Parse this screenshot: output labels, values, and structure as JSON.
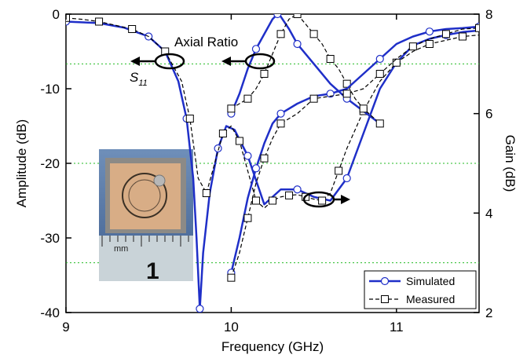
{
  "chart_data": {
    "type": "line",
    "xlabel": "Frequency (GHz)",
    "ylabel_left": "Amplitude (dB)",
    "ylabel_right": "Gain (dB)",
    "xlim": [
      9,
      11.5
    ],
    "ylim_left": [
      -40,
      0
    ],
    "ylim_right": [
      2,
      8
    ],
    "x_ticks": [
      "9",
      "10",
      "11"
    ],
    "y_ticks_left": [
      "0",
      "-10",
      "-20",
      "-30",
      "-40"
    ],
    "y_ticks_right": [
      "8",
      "6",
      "4",
      "2"
    ],
    "grid": "dotted green at gain levels",
    "legend_position": "bottom-right",
    "annotations": {
      "s11_symbol": "S",
      "s11_sub": "11",
      "axial_ratio": "Axial Ratio",
      "ruler_unit": "mm",
      "ruler_number": "1"
    },
    "colors": {
      "simulated": "#1f2fc8",
      "measured": "#000000",
      "grid": "#22bb22"
    },
    "series": [
      {
        "name": "Simulated",
        "group": "S11",
        "axis": "left",
        "x": [
          9.0,
          9.2,
          9.35,
          9.5,
          9.6,
          9.68,
          9.73,
          9.77,
          9.79,
          9.81,
          9.83,
          9.87,
          9.92,
          9.97,
          10.02,
          10.1,
          10.2,
          10.3,
          10.4,
          10.5,
          10.6,
          10.7,
          10.8,
          10.9,
          11.0,
          11.1,
          11.2,
          11.3,
          11.4,
          11.5
        ],
        "y": [
          -1,
          -1.2,
          -1.8,
          -3,
          -5,
          -9,
          -14,
          -22,
          -30,
          -39.5,
          -32,
          -24,
          -18,
          -15,
          -15.5,
          -19,
          -25.5,
          -23.5,
          -23.5,
          -24.5,
          -25,
          -22,
          -16,
          -10,
          -6.5,
          -4.2,
          -3.3,
          -2.8,
          -2.4,
          -2.2
        ]
      },
      {
        "name": "Measured",
        "group": "S11",
        "axis": "left",
        "x": [
          9.0,
          9.1,
          9.2,
          9.3,
          9.4,
          9.5,
          9.6,
          9.7,
          9.75,
          9.8,
          9.85,
          9.9,
          9.95,
          10.0,
          10.05,
          10.1,
          10.15,
          10.2,
          10.25,
          10.3,
          10.35,
          10.4,
          10.45,
          10.5,
          10.55,
          10.6,
          10.65,
          10.7,
          10.8,
          10.9,
          11.0,
          11.1,
          11.2,
          11.3,
          11.4,
          11.5
        ],
        "y": [
          -0.5,
          -0.7,
          -1.0,
          -1.5,
          -2.0,
          -3.0,
          -5.0,
          -9.0,
          -14.0,
          -22.0,
          -24.0,
          -20.0,
          -16.0,
          -15.0,
          -17.0,
          -21.0,
          -25.0,
          -26.0,
          -25.0,
          -24.5,
          -24.3,
          -24.2,
          -24.5,
          -24.8,
          -25.0,
          -24.0,
          -21.0,
          -18.0,
          -13.0,
          -9.0,
          -6.5,
          -5.0,
          -4.0,
          -3.5,
          -3.0,
          -2.8
        ]
      },
      {
        "name": "Simulated",
        "group": "Axial Ratio",
        "axis": "right",
        "x": [
          10.0,
          10.05,
          10.1,
          10.15,
          10.2,
          10.25,
          10.28,
          10.3,
          10.35,
          10.4,
          10.5,
          10.6,
          10.7,
          10.8,
          10.9
        ],
        "y": [
          6.0,
          6.4,
          6.9,
          7.3,
          7.6,
          7.9,
          8.0,
          7.95,
          7.7,
          7.4,
          7.0,
          6.6,
          6.3,
          6.05,
          5.8
        ]
      },
      {
        "name": "Measured",
        "group": "Axial Ratio",
        "axis": "right",
        "x": [
          10.0,
          10.05,
          10.1,
          10.15,
          10.2,
          10.25,
          10.3,
          10.35,
          10.4,
          10.45,
          10.5,
          10.55,
          10.6,
          10.65,
          10.7,
          10.75,
          10.8,
          10.85,
          10.9
        ],
        "y": [
          6.1,
          6.2,
          6.3,
          6.5,
          6.8,
          7.2,
          7.6,
          7.9,
          8.0,
          7.8,
          7.6,
          7.4,
          7.1,
          6.9,
          6.6,
          6.3,
          6.1,
          5.95,
          5.8
        ]
      },
      {
        "name": "Simulated",
        "group": "Gain",
        "axis": "right",
        "x": [
          10.0,
          10.05,
          10.1,
          10.15,
          10.2,
          10.25,
          10.3,
          10.4,
          10.5,
          10.6,
          10.7,
          10.8,
          10.9,
          11.0,
          11.1,
          11.2,
          11.3,
          11.4,
          11.5
        ],
        "y": [
          2.8,
          3.5,
          4.3,
          4.9,
          5.4,
          5.8,
          6.0,
          6.2,
          6.35,
          6.4,
          6.5,
          6.8,
          7.1,
          7.4,
          7.55,
          7.65,
          7.7,
          7.72,
          7.75
        ]
      },
      {
        "name": "Measured",
        "group": "Gain",
        "axis": "right",
        "x": [
          10.0,
          10.05,
          10.1,
          10.15,
          10.2,
          10.25,
          10.3,
          10.4,
          10.5,
          10.6,
          10.7,
          10.8,
          10.9,
          11.0,
          11.1,
          11.2,
          11.3,
          11.4,
          11.5
        ],
        "y": [
          2.7,
          3.2,
          3.9,
          4.6,
          5.1,
          5.5,
          5.8,
          6.0,
          6.3,
          6.35,
          6.4,
          6.5,
          6.8,
          7.1,
          7.35,
          7.5,
          7.6,
          7.7,
          7.72
        ]
      }
    ]
  },
  "legend": {
    "simulated_label": "Simulated",
    "measured_label": "Measured"
  }
}
